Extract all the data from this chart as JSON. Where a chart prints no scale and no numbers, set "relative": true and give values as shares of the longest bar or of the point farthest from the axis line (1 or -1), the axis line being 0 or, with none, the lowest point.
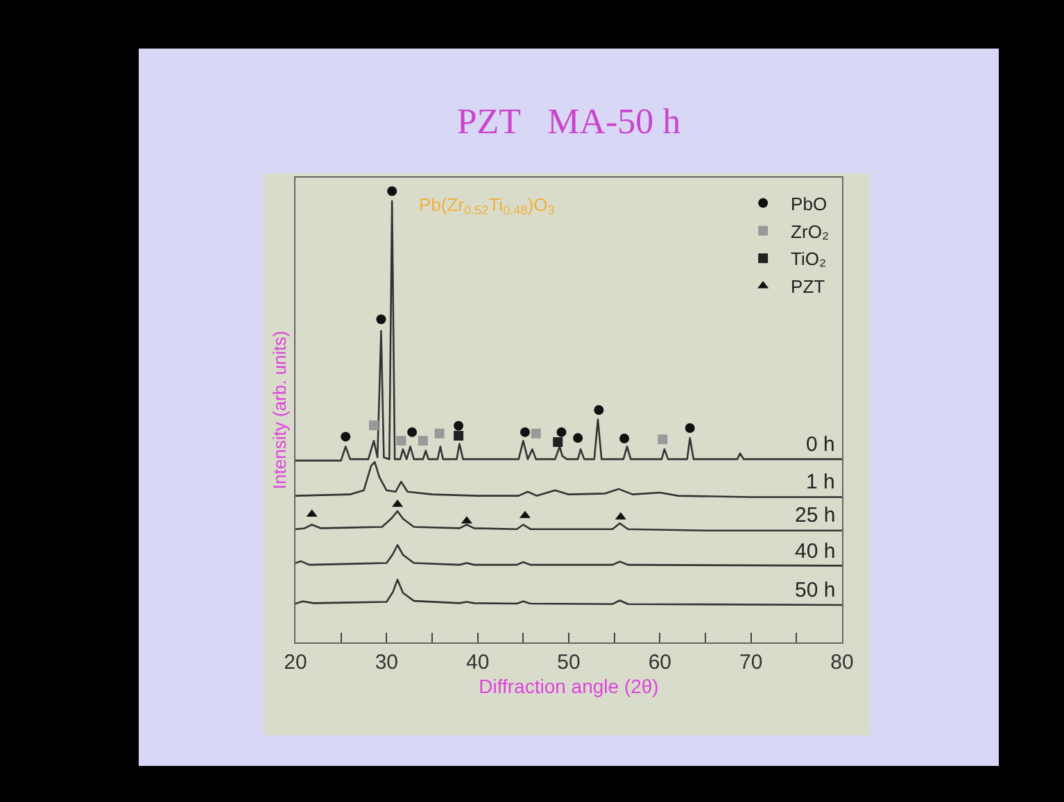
{
  "chart_data": {
    "type": "line",
    "title": "PZT   MA-50 h",
    "xlabel": "Diffraction angle (2θ)",
    "ylabel": "Intensity (arb. units)",
    "relative": true,
    "xlim": [
      20,
      80
    ],
    "xticks": [
      20,
      {
        "value": 25,
        "label": null
      },
      30,
      {
        "value": 35,
        "label": null
      },
      40,
      {
        "value": 45,
        "label": null
      },
      50,
      {
        "value": 55,
        "label": null
      },
      60,
      {
        "value": 65,
        "label": null
      },
      70,
      {
        "value": 75,
        "label": null
      },
      80
    ],
    "tick_labels": "x",
    "grid": false,
    "legend": "top right",
    "line_style": "solid",
    "annotations": [
      "Pb(Zr$_{0.52}$Ti$_{0.48}$)O$_{3}$"
    ],
    "series": [
      {
        "name": "0 h",
        "color": "#333333",
        "marker": "none",
        "x": [
          20,
          25,
          25.5,
          26,
          28,
          28.6,
          29.0,
          29.4,
          29.7,
          30.3,
          30.6,
          30.9,
          31.5,
          31.8,
          32.2,
          32.6,
          33.0,
          34.0,
          34.3,
          34.6,
          35.6,
          35.9,
          36.2,
          37.7,
          38.0,
          38.4,
          44.5,
          45.0,
          45.5,
          46.0,
          46.4,
          48.5,
          49.0,
          49.3,
          49.8,
          51.0,
          51.3,
          51.7,
          52.8,
          53.2,
          53.6,
          56.0,
          56.4,
          56.8,
          60.2,
          60.5,
          60.9,
          63.0,
          63.3,
          63.7,
          68.5,
          68.8,
          69.2,
          80
        ],
        "values": [
          0.403,
          0.403,
          0.434,
          0.406,
          0.406,
          0.447,
          0.41,
          0.69,
          0.41,
          0.406,
          0.978,
          0.406,
          0.406,
          0.428,
          0.406,
          0.434,
          0.406,
          0.406,
          0.425,
          0.406,
          0.406,
          0.434,
          0.406,
          0.406,
          0.44,
          0.406,
          0.406,
          0.447,
          0.406,
          0.428,
          0.406,
          0.406,
          0.434,
          0.413,
          0.406,
          0.406,
          0.428,
          0.406,
          0.406,
          0.494,
          0.406,
          0.406,
          0.434,
          0.406,
          0.406,
          0.428,
          0.406,
          0.406,
          0.453,
          0.406,
          0.406,
          0.419,
          0.406,
          0.406
        ]
      },
      {
        "name": "1 h",
        "color": "#333333",
        "marker": "none",
        "x": [
          20,
          26,
          27.5,
          28.3,
          28.7,
          29.2,
          30,
          31,
          31.6,
          32.3,
          35,
          40,
          44.5,
          45.5,
          46.5,
          48.5,
          50,
          54,
          55.5,
          57,
          60,
          62,
          70,
          80
        ],
        "values": [
          0.325,
          0.328,
          0.337,
          0.391,
          0.4,
          0.367,
          0.337,
          0.334,
          0.356,
          0.334,
          0.328,
          0.325,
          0.325,
          0.334,
          0.325,
          0.337,
          0.328,
          0.33,
          0.34,
          0.328,
          0.332,
          0.325,
          0.322,
          0.322
        ]
      },
      {
        "name": "25 h",
        "color": "#333333",
        "marker": "none",
        "x": [
          20,
          21,
          21.8,
          22.8,
          29.5,
          30.5,
          31.2,
          31.8,
          33,
          38,
          38.8,
          39.6,
          44.3,
          45,
          45.8,
          54.8,
          55.6,
          56.5,
          65,
          80
        ],
        "values": [
          0.251,
          0.253,
          0.261,
          0.253,
          0.256,
          0.274,
          0.291,
          0.274,
          0.256,
          0.253,
          0.261,
          0.253,
          0.251,
          0.261,
          0.251,
          0.251,
          0.264,
          0.251,
          0.248,
          0.248
        ]
      },
      {
        "name": "40 h",
        "color": "#333333",
        "marker": "none",
        "x": [
          20,
          20.6,
          21.5,
          30,
          30.7,
          31.2,
          31.8,
          33,
          38,
          38.8,
          39.6,
          44.3,
          45,
          45.8,
          54.8,
          55.6,
          56.5,
          80
        ],
        "values": [
          0.176,
          0.18,
          0.172,
          0.176,
          0.196,
          0.216,
          0.194,
          0.176,
          0.172,
          0.176,
          0.172,
          0.172,
          0.178,
          0.172,
          0.172,
          0.179,
          0.172,
          0.17
        ]
      },
      {
        "name": "50 h",
        "color": "#333333",
        "marker": "none",
        "x": [
          20,
          20.8,
          22,
          30,
          30.7,
          31.2,
          31.8,
          33,
          38,
          38.8,
          39.6,
          44.3,
          45,
          45.8,
          54.8,
          55.6,
          56.5,
          80
        ],
        "values": [
          0.086,
          0.091,
          0.087,
          0.09,
          0.112,
          0.139,
          0.11,
          0.092,
          0.087,
          0.09,
          0.087,
          0.086,
          0.091,
          0.086,
          0.085,
          0.093,
          0.085,
          0.083
        ]
      },
      {
        "name": "PbO",
        "type": "scatter",
        "color": "#111111",
        "marker": "circle",
        "x": [
          25.5,
          29.4,
          30.6,
          32.8,
          37.9,
          45.2,
          49.2,
          51.0,
          53.3,
          56.1,
          63.3
        ],
        "values": [
          0.456,
          0.716,
          1.0,
          0.466,
          0.48,
          0.466,
          0.466,
          0.453,
          0.515,
          0.452,
          0.475
        ]
      },
      {
        "name": "ZrO₂",
        "type": "scatter",
        "color": "#999999",
        "marker": "square",
        "x": [
          28.6,
          31.6,
          34.0,
          35.8,
          46.4,
          60.3
        ],
        "values": [
          0.481,
          0.447,
          0.447,
          0.463,
          0.463,
          0.45
        ]
      },
      {
        "name": "TiO₂",
        "type": "scatter",
        "color": "#222222",
        "marker": "square",
        "x": [
          37.9,
          48.8
        ],
        "values": [
          0.458,
          0.444
        ]
      },
      {
        "name": "PZT",
        "type": "scatter",
        "color": "#111111",
        "marker": "triangle",
        "x": [
          21.8,
          31.2,
          38.8,
          45.2,
          55.7
        ],
        "values": [
          0.284,
          0.306,
          0.269,
          0.281,
          0.278
        ]
      }
    ]
  }
}
